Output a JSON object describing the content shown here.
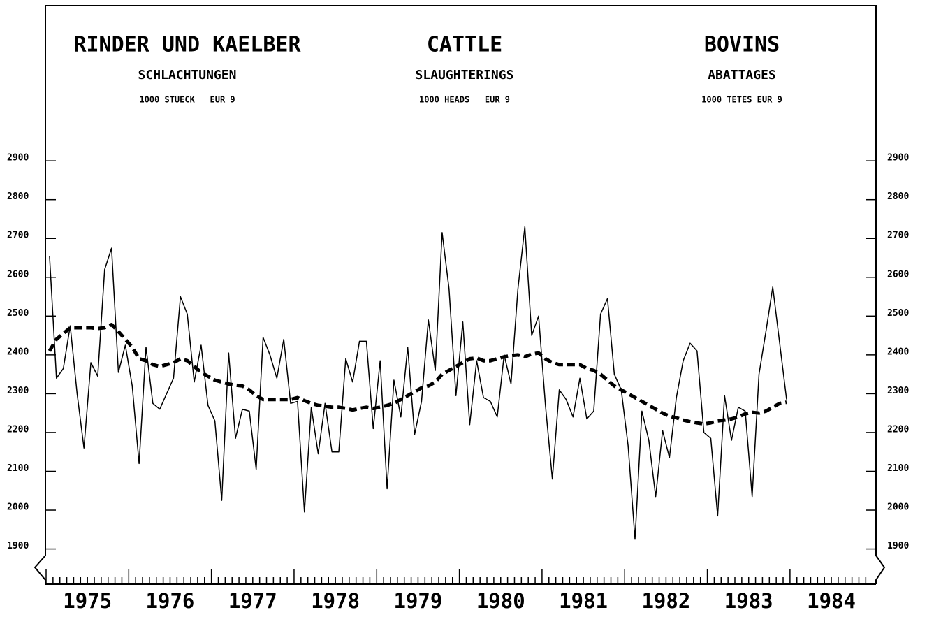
{
  "chart_data": {
    "type": "line",
    "titles": [
      {
        "title": "RINDER UND KAELBER",
        "subtitle": "SCHLACHTUNGEN",
        "unit": "1000 STUECK   EUR 9"
      },
      {
        "title": "CATTLE",
        "subtitle": "SLAUGHTERINGS",
        "unit": "1000 HEADS   EUR 9"
      },
      {
        "title": "BOVINS",
        "subtitle": "ABATTAGES",
        "unit": "1000 TETES EUR 9"
      }
    ],
    "categories": [
      null,
      null,
      null,
      null,
      null,
      null,
      "1975",
      null,
      null,
      null,
      null,
      null,
      null,
      null,
      null,
      null,
      null,
      null,
      "1976",
      null,
      null,
      null,
      null,
      null,
      null,
      null,
      null,
      null,
      null,
      null,
      "1977",
      null,
      null,
      null,
      null,
      null,
      null,
      null,
      null,
      null,
      null,
      null,
      "1978",
      null,
      null,
      null,
      null,
      null,
      null,
      null,
      null,
      null,
      null,
      null,
      "1979",
      null,
      null,
      null,
      null,
      null,
      null,
      null,
      null,
      null,
      null,
      null,
      "1980",
      null,
      null,
      null,
      null,
      null,
      null,
      null,
      null,
      null,
      null,
      null,
      "1981",
      null,
      null,
      null,
      null,
      null,
      null,
      null,
      null,
      null,
      null,
      null,
      "1982",
      null,
      null,
      null,
      null,
      null,
      null,
      null,
      null,
      null,
      null,
      null,
      "1983",
      null,
      null,
      null,
      null,
      null,
      null,
      null,
      null,
      null,
      null,
      null,
      "1984",
      null,
      null,
      null,
      null,
      null
    ],
    "series": [
      {
        "color": "#000000",
        "style": "solid",
        "values": [
          2655,
          2340,
          2365,
          2475,
          2300,
          2160,
          2380,
          2345,
          2620,
          2675,
          2355,
          2425,
          2320,
          2120,
          2420,
          2275,
          2260,
          2300,
          2340,
          2550,
          2505,
          2330,
          2425,
          2270,
          2230,
          2025,
          2405,
          2185,
          2260,
          2255,
          2105,
          2445,
          2400,
          2340,
          2440,
          2275,
          2280,
          1995,
          2265,
          2145,
          2275,
          2150,
          2150,
          2390,
          2330,
          2435,
          2435,
          2210,
          2385,
          2055,
          2335,
          2240,
          2420,
          2195,
          2280,
          2490,
          2360,
          2715,
          2570,
          2295,
          2485,
          2220,
          2385,
          2290,
          2280,
          2240,
          2400,
          2325,
          2570,
          2730,
          2450,
          2500,
          2270,
          2080,
          2310,
          2285,
          2240,
          2340,
          2235,
          2255,
          2505,
          2545,
          2350,
          2310,
          2165,
          1925,
          2255,
          2180,
          2035,
          2205,
          2135,
          2290,
          2385,
          2430,
          2410,
          2200,
          2185,
          1985,
          2295,
          2180,
          2265,
          2255,
          2035,
          2350,
          2460,
          2575,
          2430,
          2285,
          null,
          null,
          null,
          null,
          null,
          null,
          null,
          null,
          null,
          null,
          null,
          null
        ]
      },
      {
        "color": "#000000",
        "style": "dashed",
        "values": [
          2410,
          2440,
          2455,
          2470,
          2470,
          2470,
          2470,
          2468,
          2470,
          2478,
          2460,
          2440,
          2420,
          2390,
          2385,
          2375,
          2370,
          2375,
          2380,
          2390,
          2385,
          2370,
          2355,
          2345,
          2335,
          2330,
          2325,
          2322,
          2320,
          2310,
          2295,
          2285,
          2285,
          2285,
          2285,
          2285,
          2290,
          2282,
          2275,
          2270,
          2268,
          2265,
          2265,
          2262,
          2258,
          2262,
          2265,
          2262,
          2265,
          2270,
          2275,
          2285,
          2295,
          2305,
          2315,
          2320,
          2330,
          2350,
          2360,
          2370,
          2380,
          2390,
          2392,
          2385,
          2385,
          2390,
          2395,
          2398,
          2400,
          2395,
          2402,
          2405,
          2390,
          2380,
          2375,
          2375,
          2375,
          2375,
          2365,
          2360,
          2350,
          2335,
          2320,
          2310,
          2300,
          2290,
          2280,
          2270,
          2260,
          2250,
          2242,
          2238,
          2232,
          2228,
          2225,
          2222,
          2225,
          2230,
          2232,
          2235,
          2240,
          2248,
          2252,
          2250,
          2255,
          2265,
          2275,
          2278,
          null,
          null,
          null,
          null,
          null,
          null,
          null,
          null,
          null,
          null,
          null,
          null
        ]
      }
    ],
    "ylim": [
      1820,
      3300
    ],
    "yticks": [
      1900,
      2000,
      2100,
      2200,
      2300,
      2400,
      2500,
      2600,
      2700,
      2800,
      2900
    ]
  }
}
